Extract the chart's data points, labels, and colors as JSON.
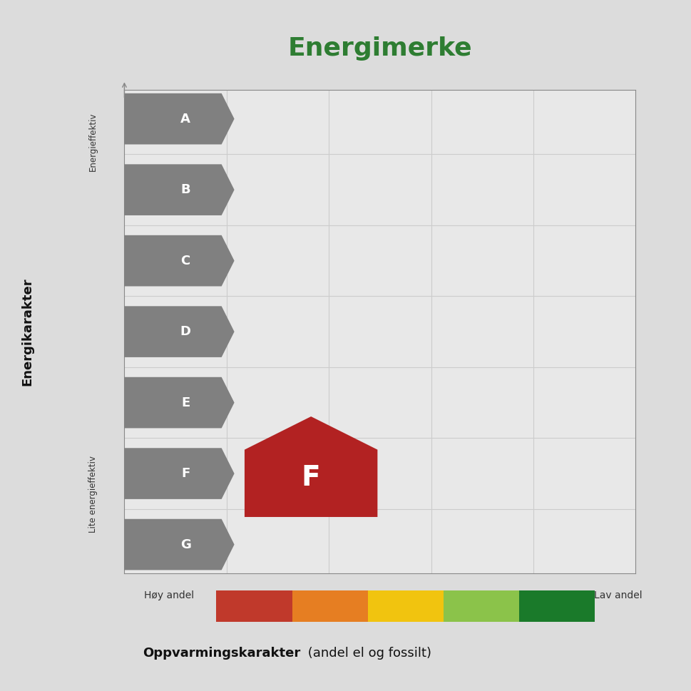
{
  "title": "Energimerke",
  "title_color": "#2e7d32",
  "title_fontsize": 26,
  "background_color": "#dcdcdc",
  "plot_bg_color": "#e8e8e8",
  "ylabel": "Energikarakter",
  "xlabel_bold": "Oppvarmingskarakter",
  "xlabel_normal": " (andel el og fossilt)",
  "energy_labels": [
    "A",
    "B",
    "C",
    "D",
    "E",
    "F",
    "G"
  ],
  "arrow_color": "#808080",
  "arrow_text_color": "#ffffff",
  "active_label": "F",
  "active_house_color": "#b22222",
  "y_top_label": "Energieffektiv",
  "y_bottom_label": "Lite energieffektiv",
  "x_left_label": "Høy andel",
  "x_right_label": "Lav andel",
  "color_bar_colors": [
    "#c0392b",
    "#e67e22",
    "#f1c40f",
    "#8bc34a",
    "#1a7a2a"
  ],
  "grid_color": "#cccccc",
  "axis_line_color": "#888888"
}
